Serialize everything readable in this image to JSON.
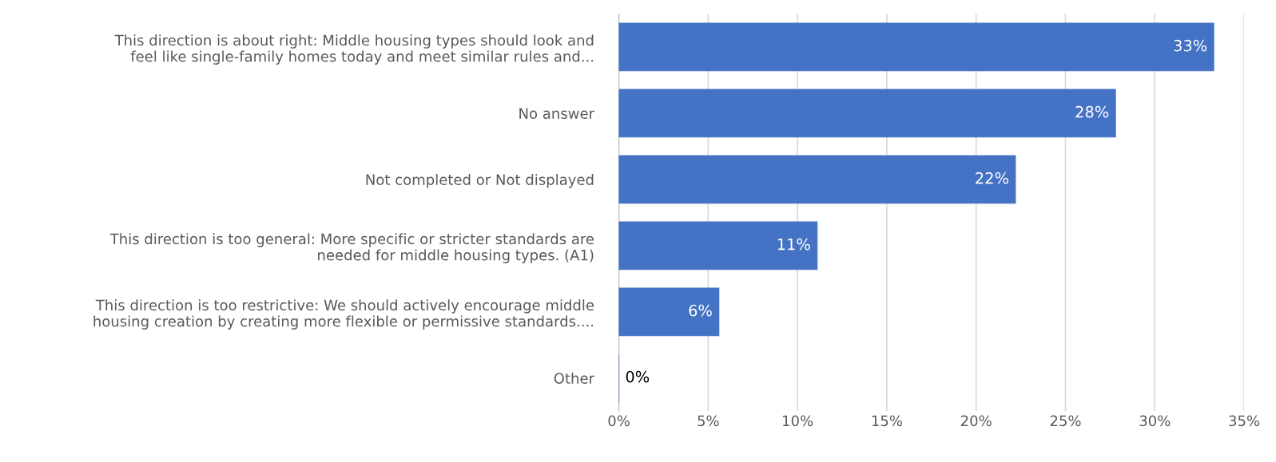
{
  "chart_data": {
    "type": "bar",
    "orientation": "horizontal",
    "categories": [
      "This direction is about right: Middle housing types should look and\nfeel like single-family homes today and meet similar rules and...",
      "No answer",
      "Not completed or Not displayed",
      "This direction is too general: More specific or stricter standards are\nneeded for middle housing types. (A1)",
      "This direction is too restrictive: We should actively encourage middle\nhousing creation by creating more flexible or permissive standards....",
      "Other"
    ],
    "values": [
      33.3,
      27.8,
      22.2,
      11.1,
      5.6,
      0
    ],
    "value_labels": [
      "33%",
      "28%",
      "22%",
      "11%",
      "6%",
      "0%"
    ],
    "color": "#4472c4",
    "xlim": [
      0,
      35
    ],
    "xticks": [
      {
        "value": 0,
        "label": "0%"
      },
      {
        "value": 5,
        "label": "5%"
      },
      {
        "value": 10,
        "label": "10%"
      },
      {
        "value": 15,
        "label": "15%"
      },
      {
        "value": 20,
        "label": "20%"
      },
      {
        "value": 25,
        "label": "25%"
      },
      {
        "value": 30,
        "label": "30%"
      },
      {
        "value": 35,
        "label": "35%"
      }
    ],
    "grid": "x",
    "legend": false
  }
}
